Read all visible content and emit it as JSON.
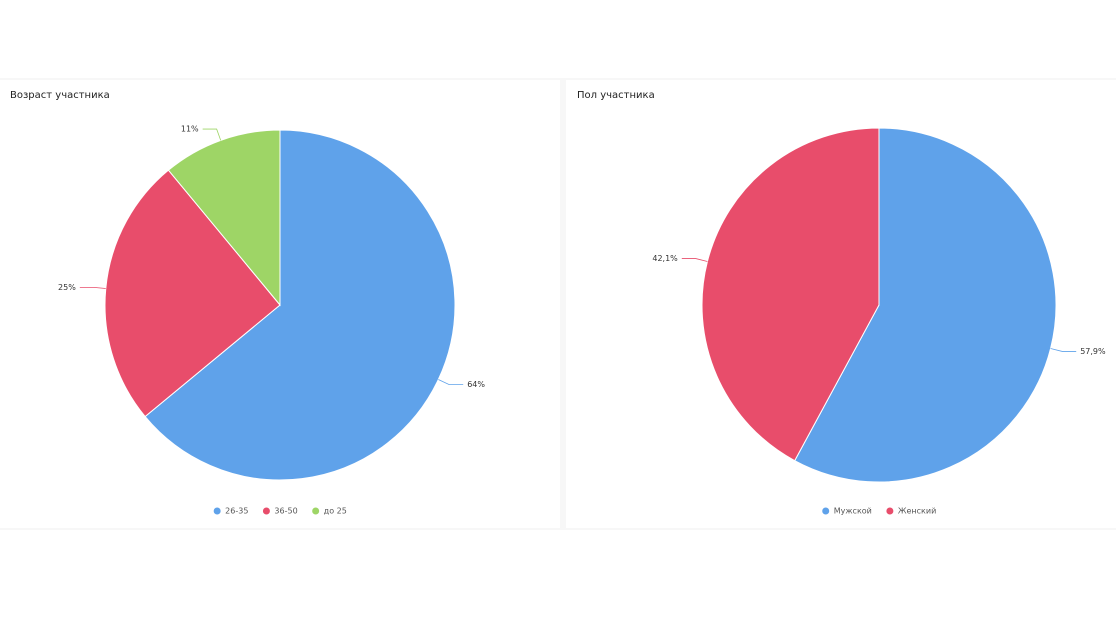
{
  "chart_data": [
    {
      "type": "pie",
      "title": "Возраст участника",
      "categories": [
        "26-35",
        "36-50",
        "до 25"
      ],
      "values": [
        64,
        25,
        11
      ],
      "value_labels": [
        "64%",
        "25%",
        "11%"
      ],
      "colors": [
        "#5fa2ea",
        "#e84d6b",
        "#9ed566"
      ]
    },
    {
      "type": "pie",
      "title": "Пол участника",
      "categories": [
        "Мужской",
        "Женский"
      ],
      "values": [
        57.9,
        42.1
      ],
      "value_labels": [
        "57,9%",
        "42,1%"
      ],
      "colors": [
        "#5fa2ea",
        "#e84d6b"
      ]
    }
  ]
}
